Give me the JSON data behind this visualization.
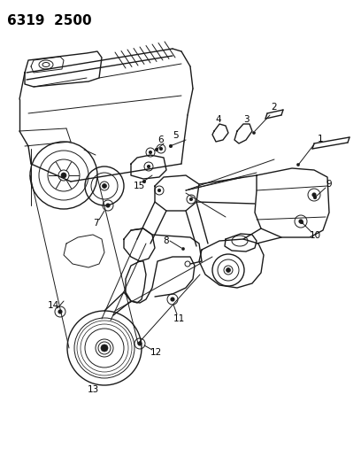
{
  "title": "6319  2500",
  "background_color": "#ffffff",
  "line_color": "#1a1a1a",
  "label_color": "#000000",
  "label_fontsize": 7.5,
  "title_fontsize": 11,
  "figsize": [
    4.08,
    5.33
  ],
  "dpi": 100
}
